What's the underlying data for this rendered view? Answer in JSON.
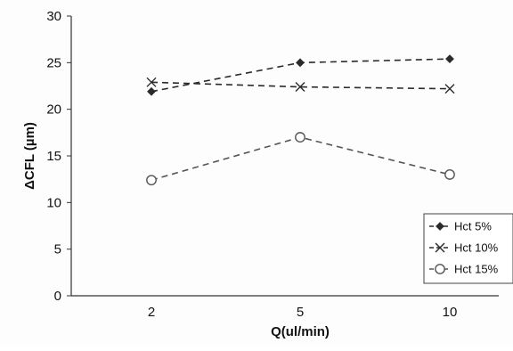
{
  "chart_data": {
    "type": "line",
    "title": "",
    "xlabel": "Q(ul/min)",
    "ylabel": "ΔCFL (µm)",
    "categories": [
      "2",
      "5",
      "10"
    ],
    "ylim": [
      0,
      30
    ],
    "yticks": [
      0,
      5,
      10,
      15,
      20,
      25,
      30
    ],
    "grid": false,
    "legend_position": "bottom-right",
    "series": [
      {
        "name": "Hct 5%",
        "values": [
          21.9,
          25.0,
          25.4
        ],
        "marker": "diamond",
        "color": "#2b2b2b"
      },
      {
        "name": "Hct 10%",
        "values": [
          22.9,
          22.4,
          22.2
        ],
        "marker": "x",
        "color": "#2b2b2b"
      },
      {
        "name": "Hct 15%",
        "values": [
          12.4,
          17.0,
          13.0
        ],
        "marker": "circle",
        "color": "#555555"
      }
    ]
  }
}
